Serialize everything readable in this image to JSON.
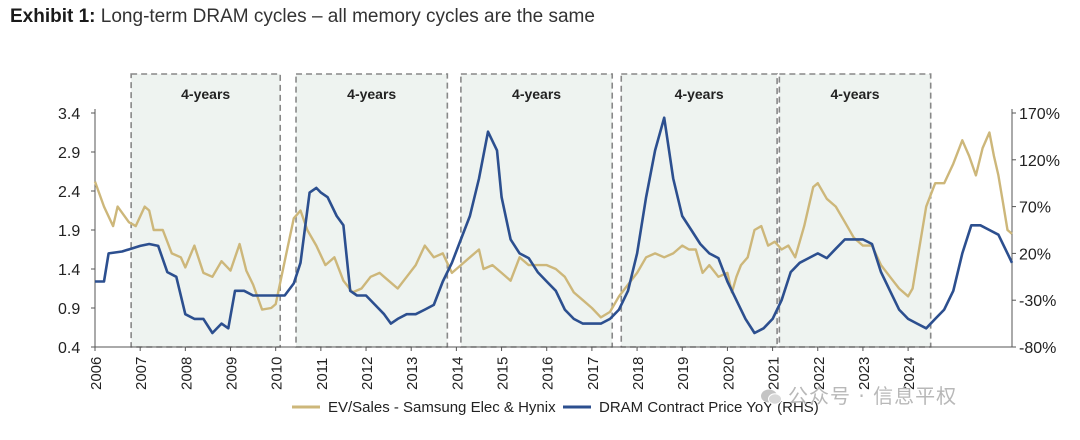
{
  "exhibit": {
    "label": "Exhibit 1:",
    "title": "Long-term DRAM cycles – all memory cycles are the same"
  },
  "watermark": {
    "text": "公众号 · 信息平权",
    "icon": "wechat-icon"
  },
  "colors": {
    "ev_sales": "#cdb77a",
    "dram": "#2c4f8f",
    "shade": "#eef3f0",
    "box": "#888888"
  },
  "chart_data": {
    "type": "line",
    "x_ticks": [
      "2006",
      "2007",
      "2008",
      "2009",
      "2010",
      "2011",
      "2012",
      "2013",
      "2014",
      "2015",
      "2016",
      "2017",
      "2018",
      "2019",
      "2020",
      "2021",
      "2022",
      "2023",
      "2024"
    ],
    "y_left": {
      "ticks": [
        "3.4",
        "2.9",
        "2.4",
        "1.9",
        "1.4",
        "0.9",
        "0.4"
      ],
      "range": [
        0.4,
        3.4
      ]
    },
    "y_right": {
      "ticks": [
        "170%",
        "120%",
        "70%",
        "20%",
        "-30%",
        "-80%"
      ],
      "range": [
        -80,
        170
      ]
    },
    "legend": {
      "position": "bottom",
      "entries": [
        "EV/Sales - Samsung Elec & Hynix",
        "DRAM Contract Price YoY (RHS)"
      ]
    },
    "cycles": [
      {
        "label": "4-years",
        "start": 2006.8,
        "end": 2010.1
      },
      {
        "label": "4-years",
        "start": 2010.45,
        "end": 2013.8
      },
      {
        "label": "4-years",
        "start": 2014.1,
        "end": 2017.45
      },
      {
        "label": "4-years",
        "start": 2017.65,
        "end": 2021.1
      },
      {
        "label": "4-years",
        "start": 2021.15,
        "end": 2024.5
      }
    ],
    "series": [
      {
        "name": "EV/Sales - Samsung Elec & Hynix",
        "axis": "left",
        "points": [
          [
            2006.0,
            2.52
          ],
          [
            2006.2,
            2.2
          ],
          [
            2006.4,
            1.95
          ],
          [
            2006.5,
            2.2
          ],
          [
            2006.75,
            2.0
          ],
          [
            2006.9,
            1.95
          ],
          [
            2007.1,
            2.2
          ],
          [
            2007.2,
            2.15
          ],
          [
            2007.3,
            1.9
          ],
          [
            2007.5,
            1.9
          ],
          [
            2007.7,
            1.6
          ],
          [
            2007.9,
            1.55
          ],
          [
            2008.0,
            1.42
          ],
          [
            2008.2,
            1.7
          ],
          [
            2008.4,
            1.35
          ],
          [
            2008.6,
            1.3
          ],
          [
            2008.8,
            1.5
          ],
          [
            2009.0,
            1.38
          ],
          [
            2009.2,
            1.72
          ],
          [
            2009.35,
            1.38
          ],
          [
            2009.5,
            1.2
          ],
          [
            2009.7,
            0.88
          ],
          [
            2009.9,
            0.9
          ],
          [
            2010.0,
            0.95
          ],
          [
            2010.2,
            1.5
          ],
          [
            2010.4,
            2.05
          ],
          [
            2010.55,
            2.15
          ],
          [
            2010.7,
            1.9
          ],
          [
            2010.9,
            1.7
          ],
          [
            2011.1,
            1.45
          ],
          [
            2011.3,
            1.55
          ],
          [
            2011.5,
            1.25
          ],
          [
            2011.7,
            1.1
          ],
          [
            2011.9,
            1.15
          ],
          [
            2012.1,
            1.3
          ],
          [
            2012.3,
            1.35
          ],
          [
            2012.5,
            1.25
          ],
          [
            2012.7,
            1.15
          ],
          [
            2012.9,
            1.3
          ],
          [
            2013.1,
            1.45
          ],
          [
            2013.3,
            1.7
          ],
          [
            2013.5,
            1.55
          ],
          [
            2013.7,
            1.6
          ],
          [
            2013.9,
            1.35
          ],
          [
            2014.1,
            1.45
          ],
          [
            2014.3,
            1.55
          ],
          [
            2014.5,
            1.65
          ],
          [
            2014.6,
            1.4
          ],
          [
            2014.8,
            1.45
          ],
          [
            2015.0,
            1.35
          ],
          [
            2015.2,
            1.25
          ],
          [
            2015.4,
            1.55
          ],
          [
            2015.6,
            1.45
          ],
          [
            2015.8,
            1.45
          ],
          [
            2016.0,
            1.45
          ],
          [
            2016.2,
            1.4
          ],
          [
            2016.4,
            1.3
          ],
          [
            2016.6,
            1.1
          ],
          [
            2016.8,
            1.0
          ],
          [
            2017.0,
            0.9
          ],
          [
            2017.2,
            0.78
          ],
          [
            2017.4,
            0.85
          ],
          [
            2017.6,
            1.05
          ],
          [
            2017.8,
            1.2
          ],
          [
            2018.0,
            1.35
          ],
          [
            2018.2,
            1.55
          ],
          [
            2018.4,
            1.6
          ],
          [
            2018.6,
            1.55
          ],
          [
            2018.8,
            1.6
          ],
          [
            2019.0,
            1.7
          ],
          [
            2019.15,
            1.65
          ],
          [
            2019.3,
            1.65
          ],
          [
            2019.45,
            1.35
          ],
          [
            2019.6,
            1.45
          ],
          [
            2019.8,
            1.3
          ],
          [
            2020.0,
            1.35
          ],
          [
            2020.1,
            1.1
          ],
          [
            2020.2,
            1.3
          ],
          [
            2020.3,
            1.45
          ],
          [
            2020.45,
            1.55
          ],
          [
            2020.6,
            1.9
          ],
          [
            2020.75,
            1.95
          ],
          [
            2020.9,
            1.7
          ],
          [
            2021.05,
            1.75
          ],
          [
            2021.2,
            1.65
          ],
          [
            2021.35,
            1.7
          ],
          [
            2021.5,
            1.55
          ],
          [
            2021.7,
            1.95
          ],
          [
            2021.9,
            2.45
          ],
          [
            2022.0,
            2.5
          ],
          [
            2022.2,
            2.3
          ],
          [
            2022.4,
            2.2
          ],
          [
            2022.6,
            2.0
          ],
          [
            2022.8,
            1.8
          ],
          [
            2023.0,
            1.7
          ],
          [
            2023.2,
            1.7
          ],
          [
            2023.4,
            1.45
          ],
          [
            2023.6,
            1.3
          ],
          [
            2023.8,
            1.15
          ],
          [
            2024.0,
            1.05
          ],
          [
            2024.1,
            1.15
          ],
          [
            2024.2,
            1.5
          ],
          [
            2024.4,
            2.2
          ],
          [
            2024.6,
            2.5
          ],
          [
            2024.8,
            2.5
          ],
          [
            2025.0,
            2.75
          ],
          [
            2025.2,
            3.05
          ],
          [
            2025.35,
            2.85
          ],
          [
            2025.5,
            2.6
          ],
          [
            2025.65,
            2.95
          ],
          [
            2025.8,
            3.15
          ],
          [
            2025.9,
            2.85
          ],
          [
            2026.0,
            2.6
          ],
          [
            2026.1,
            2.25
          ],
          [
            2026.2,
            1.9
          ],
          [
            2026.3,
            1.85
          ]
        ]
      },
      {
        "name": "DRAM Contract Price YoY (RHS)",
        "axis": "right",
        "points": [
          [
            2006.0,
            -10
          ],
          [
            2006.2,
            -10
          ],
          [
            2006.3,
            20
          ],
          [
            2006.6,
            22
          ],
          [
            2006.8,
            25
          ],
          [
            2007.0,
            28
          ],
          [
            2007.2,
            30
          ],
          [
            2007.4,
            28
          ],
          [
            2007.6,
            0
          ],
          [
            2007.8,
            -5
          ],
          [
            2008.0,
            -45
          ],
          [
            2008.2,
            -50
          ],
          [
            2008.4,
            -50
          ],
          [
            2008.6,
            -65
          ],
          [
            2008.8,
            -55
          ],
          [
            2008.95,
            -60
          ],
          [
            2009.1,
            -20
          ],
          [
            2009.3,
            -20
          ],
          [
            2009.5,
            -25
          ],
          [
            2009.7,
            -25
          ],
          [
            2009.85,
            -25
          ],
          [
            2010.0,
            -25
          ],
          [
            2010.2,
            -25
          ],
          [
            2010.4,
            -12
          ],
          [
            2010.55,
            10
          ],
          [
            2010.75,
            85
          ],
          [
            2010.9,
            90
          ],
          [
            2011.0,
            85
          ],
          [
            2011.15,
            80
          ],
          [
            2011.35,
            60
          ],
          [
            2011.5,
            50
          ],
          [
            2011.65,
            -20
          ],
          [
            2011.8,
            -25
          ],
          [
            2012.0,
            -25
          ],
          [
            2012.2,
            -35
          ],
          [
            2012.4,
            -45
          ],
          [
            2012.55,
            -55
          ],
          [
            2012.7,
            -50
          ],
          [
            2012.9,
            -45
          ],
          [
            2013.1,
            -45
          ],
          [
            2013.3,
            -40
          ],
          [
            2013.5,
            -35
          ],
          [
            2013.7,
            -10
          ],
          [
            2013.9,
            10
          ],
          [
            2014.1,
            35
          ],
          [
            2014.3,
            60
          ],
          [
            2014.5,
            100
          ],
          [
            2014.7,
            150
          ],
          [
            2014.9,
            130
          ],
          [
            2015.0,
            80
          ],
          [
            2015.2,
            35
          ],
          [
            2015.4,
            20
          ],
          [
            2015.6,
            15
          ],
          [
            2015.8,
            0
          ],
          [
            2016.0,
            -10
          ],
          [
            2016.2,
            -20
          ],
          [
            2016.4,
            -40
          ],
          [
            2016.6,
            -50
          ],
          [
            2016.8,
            -55
          ],
          [
            2017.0,
            -55
          ],
          [
            2017.2,
            -55
          ],
          [
            2017.4,
            -50
          ],
          [
            2017.6,
            -40
          ],
          [
            2017.8,
            -20
          ],
          [
            2018.0,
            20
          ],
          [
            2018.2,
            80
          ],
          [
            2018.4,
            130
          ],
          [
            2018.6,
            165
          ],
          [
            2018.8,
            100
          ],
          [
            2019.0,
            60
          ],
          [
            2019.2,
            45
          ],
          [
            2019.4,
            30
          ],
          [
            2019.6,
            20
          ],
          [
            2019.8,
            15
          ],
          [
            2020.0,
            -10
          ],
          [
            2020.2,
            -30
          ],
          [
            2020.4,
            -50
          ],
          [
            2020.6,
            -65
          ],
          [
            2020.8,
            -60
          ],
          [
            2021.0,
            -50
          ],
          [
            2021.2,
            -30
          ],
          [
            2021.4,
            0
          ],
          [
            2021.6,
            10
          ],
          [
            2021.8,
            15
          ],
          [
            2022.0,
            20
          ],
          [
            2022.2,
            15
          ],
          [
            2022.4,
            25
          ],
          [
            2022.6,
            35
          ],
          [
            2022.8,
            35
          ],
          [
            2023.0,
            35
          ],
          [
            2023.2,
            30
          ],
          [
            2023.4,
            0
          ],
          [
            2023.6,
            -20
          ],
          [
            2023.8,
            -40
          ],
          [
            2024.0,
            -50
          ],
          [
            2024.2,
            -55
          ],
          [
            2024.4,
            -60
          ],
          [
            2024.6,
            -50
          ],
          [
            2024.8,
            -40
          ],
          [
            2025.0,
            -20
          ],
          [
            2025.2,
            20
          ],
          [
            2025.4,
            50
          ],
          [
            2025.6,
            50
          ],
          [
            2025.8,
            45
          ],
          [
            2026.0,
            40
          ],
          [
            2026.2,
            20
          ],
          [
            2026.3,
            10
          ]
        ]
      }
    ]
  }
}
